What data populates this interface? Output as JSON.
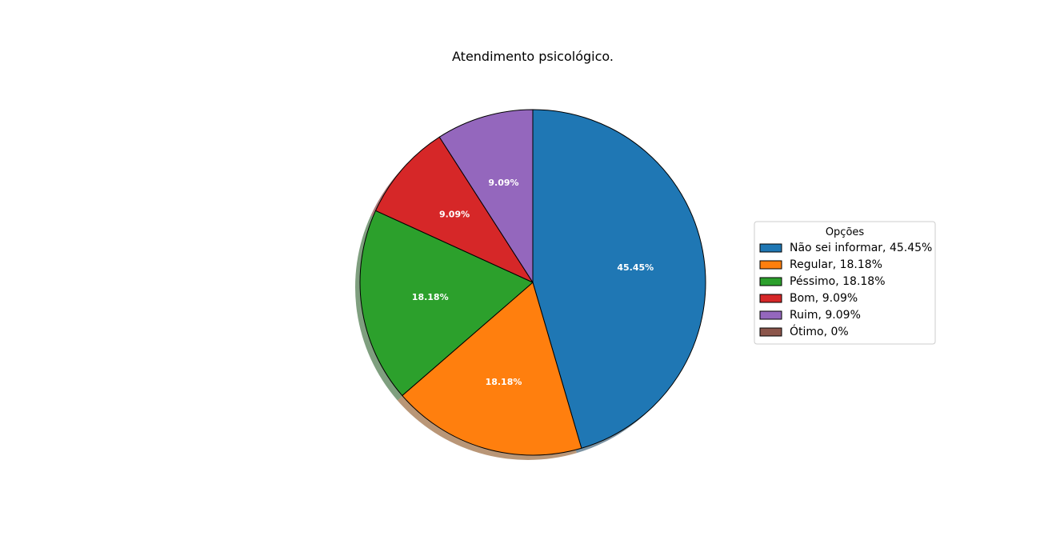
{
  "chart_data": {
    "type": "pie",
    "title": "Atendimento psicológico.",
    "start_angle_deg": 90,
    "direction": "clockwise",
    "shadow": true,
    "slices": [
      {
        "label": "Não sei informar",
        "value": 45.45,
        "pct_label": "45.45%",
        "legend": "Não sei informar, 45.45%",
        "color": "#1f77b4"
      },
      {
        "label": "Regular",
        "value": 18.18,
        "pct_label": "18.18%",
        "legend": "Regular, 18.18%",
        "color": "#ff7f0e"
      },
      {
        "label": "Péssimo",
        "value": 18.18,
        "pct_label": "18.18%",
        "legend": "Péssimo, 18.18%",
        "color": "#2ca02c"
      },
      {
        "label": "Bom",
        "value": 9.09,
        "pct_label": "9.09%",
        "legend": "Bom, 9.09%",
        "color": "#d62728"
      },
      {
        "label": "Ruim",
        "value": 9.09,
        "pct_label": "9.09%",
        "legend": "Ruim, 9.09%",
        "color": "#9467bd"
      },
      {
        "label": "Ótimo",
        "value": 0,
        "pct_label": "",
        "legend": "Ótimo, 0%",
        "color": "#8c564b"
      }
    ],
    "legend": {
      "title": "Opções",
      "placement": "right"
    }
  }
}
